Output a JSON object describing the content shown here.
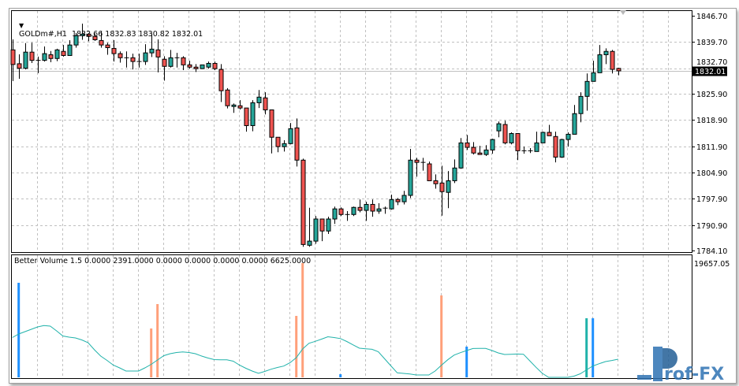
{
  "chart_header": {
    "symbol_timeframe": "GOLDm#,H1",
    "ohlc_text": "1832.66 1832.83 1830.82 1832.01"
  },
  "indicator_header": {
    "text": "Better Volume 1.5 0.0000 2391.0000 0.0000 0.0000 0.0000 0.0000 6625.0000"
  },
  "current_price_label": "1832.01",
  "watermark": "Prof-FX",
  "colors": {
    "bull": "#26a69a",
    "bear": "#ef5350",
    "volume_blue": "#1e90ff",
    "volume_orange": "#ffa07a",
    "volume_teal": "#20b2aa",
    "average_line": "#20b2aa",
    "watermark": "#2f73b3"
  },
  "chart_data": [
    {
      "type": "candlestick",
      "title": "GOLDm#,H1",
      "ylim": [
        1784.1,
        1846.7
      ],
      "y_ticks": [
        "1846.70",
        "1839.70",
        "1832.70",
        "1825.90",
        "1818.90",
        "1811.90",
        "1804.90",
        "1797.90",
        "1790.90",
        "1784.10"
      ],
      "grid": true,
      "current_price": 1832.01,
      "ohlc": [
        [
          1837.6,
          1840.4,
          1829.3,
          1833.7
        ],
        [
          1833.9,
          1836.4,
          1829.9,
          1832.7
        ],
        [
          1832.7,
          1839.4,
          1832.4,
          1837.0
        ],
        [
          1837.0,
          1839.5,
          1834.1,
          1834.8
        ],
        [
          1834.8,
          1835.8,
          1831.4,
          1834.8
        ],
        [
          1834.8,
          1838.5,
          1834.5,
          1836.6
        ],
        [
          1836.3,
          1837.3,
          1834.3,
          1835.3
        ],
        [
          1835.3,
          1837.9,
          1834.6,
          1837.6
        ],
        [
          1837.2,
          1838.9,
          1835.8,
          1836.1
        ],
        [
          1836.1,
          1840.2,
          1836.1,
          1838.9
        ],
        [
          1838.9,
          1842.1,
          1838.2,
          1841.4
        ],
        [
          1841.4,
          1844.6,
          1840.3,
          1841.8
        ],
        [
          1841.8,
          1842.1,
          1839.9,
          1841.2
        ],
        [
          1841.2,
          1841.8,
          1840.0,
          1840.3
        ],
        [
          1840.1,
          1842.5,
          1838.2,
          1838.9
        ],
        [
          1838.9,
          1839.5,
          1836.3,
          1838.2
        ],
        [
          1838.0,
          1840.2,
          1834.5,
          1836.6
        ],
        [
          1836.6,
          1837.2,
          1834.2,
          1835.5
        ],
        [
          1835.5,
          1837.2,
          1832.9,
          1835.5
        ],
        [
          1835.5,
          1836.6,
          1832.4,
          1834.5
        ],
        [
          1834.5,
          1836.6,
          1832.9,
          1834.5
        ],
        [
          1834.5,
          1839.1,
          1833.6,
          1836.8
        ],
        [
          1836.8,
          1842.0,
          1835.7,
          1837.8
        ],
        [
          1837.6,
          1840.4,
          1831.6,
          1835.7
        ],
        [
          1835.1,
          1835.9,
          1829.4,
          1833.2
        ],
        [
          1833.2,
          1837.6,
          1832.9,
          1835.5
        ],
        [
          1835.5,
          1836.8,
          1832.9,
          1835.5
        ],
        [
          1835.5,
          1835.9,
          1832.2,
          1833.6
        ],
        [
          1833.6,
          1834.7,
          1832.6,
          1833.0
        ],
        [
          1833.0,
          1833.8,
          1831.7,
          1832.6
        ],
        [
          1832.6,
          1833.6,
          1832.6,
          1833.6
        ],
        [
          1833.0,
          1834.5,
          1832.6,
          1834.0
        ],
        [
          1834.0,
          1834.5,
          1832.2,
          1832.6
        ],
        [
          1832.4,
          1833.8,
          1823.7,
          1826.7
        ],
        [
          1826.9,
          1827.4,
          1822.0,
          1822.7
        ],
        [
          1822.5,
          1823.3,
          1820.8,
          1822.9
        ],
        [
          1822.7,
          1824.2,
          1821.7,
          1822.1
        ],
        [
          1822.1,
          1822.1,
          1815.8,
          1817.4
        ],
        [
          1817.4,
          1824.2,
          1815.9,
          1823.5
        ],
        [
          1823.5,
          1826.9,
          1822.1,
          1825.0
        ],
        [
          1824.8,
          1826.3,
          1820.4,
          1821.6
        ],
        [
          1821.6,
          1821.6,
          1810.0,
          1814.3
        ],
        [
          1814.3,
          1814.3,
          1810.3,
          1811.8
        ],
        [
          1811.8,
          1813.5,
          1810.5,
          1812.6
        ],
        [
          1812.6,
          1818.1,
          1812.4,
          1816.6
        ],
        [
          1816.8,
          1819.3,
          1806.5,
          1808.2
        ],
        [
          1808.2,
          1808.6,
          1785.1,
          1785.7
        ],
        [
          1785.5,
          1795.5,
          1785.1,
          1786.6
        ],
        [
          1786.6,
          1793.3,
          1785.9,
          1792.5
        ],
        [
          1792.5,
          1792.5,
          1786.6,
          1789.3
        ],
        [
          1789.3,
          1793.1,
          1788.5,
          1792.5
        ],
        [
          1792.5,
          1795.8,
          1791.2,
          1795.2
        ],
        [
          1795.2,
          1795.6,
          1793.3,
          1793.7
        ],
        [
          1793.7,
          1794.6,
          1792.0,
          1793.7
        ],
        [
          1793.7,
          1795.8,
          1793.3,
          1795.6
        ],
        [
          1795.6,
          1797.7,
          1794.3,
          1794.8
        ],
        [
          1794.8,
          1797.1,
          1792.0,
          1796.4
        ],
        [
          1796.4,
          1797.7,
          1793.1,
          1794.6
        ],
        [
          1794.6,
          1796.7,
          1793.9,
          1795.2
        ],
        [
          1795.4,
          1795.8,
          1793.9,
          1795.4
        ],
        [
          1795.2,
          1799.0,
          1795.0,
          1797.7
        ],
        [
          1797.7,
          1798.1,
          1796.2,
          1797.1
        ],
        [
          1797.1,
          1800.0,
          1796.4,
          1798.8
        ],
        [
          1798.8,
          1811.2,
          1798.1,
          1808.2
        ],
        [
          1808.2,
          1808.8,
          1803.8,
          1807.6
        ],
        [
          1807.6,
          1808.8,
          1805.4,
          1807.6
        ],
        [
          1807.2,
          1807.8,
          1802.7,
          1802.7
        ],
        [
          1802.7,
          1804.4,
          1800.6,
          1801.9
        ],
        [
          1802.1,
          1806.7,
          1793.4,
          1799.8
        ],
        [
          1799.6,
          1805.3,
          1795.4,
          1802.7
        ],
        [
          1802.7,
          1808.4,
          1802.1,
          1806.1
        ],
        [
          1806.1,
          1814.1,
          1805.9,
          1812.8
        ],
        [
          1812.8,
          1814.9,
          1810.9,
          1811.6
        ],
        [
          1811.6,
          1813.0,
          1809.7,
          1810.1
        ],
        [
          1810.1,
          1812.0,
          1809.7,
          1809.7
        ],
        [
          1809.7,
          1812.2,
          1809.3,
          1810.9
        ],
        [
          1810.9,
          1813.9,
          1809.9,
          1813.7
        ],
        [
          1816.0,
          1818.5,
          1814.3,
          1817.9
        ],
        [
          1817.7,
          1818.7,
          1812.4,
          1812.8
        ],
        [
          1812.8,
          1815.6,
          1812.4,
          1815.3
        ],
        [
          1815.3,
          1815.3,
          1808.2,
          1810.7
        ],
        [
          1810.7,
          1811.8,
          1809.9,
          1810.7
        ],
        [
          1810.7,
          1811.4,
          1810.1,
          1810.7
        ],
        [
          1810.5,
          1815.8,
          1810.5,
          1812.8
        ],
        [
          1812.8,
          1815.8,
          1812.8,
          1815.6
        ],
        [
          1815.6,
          1817.6,
          1814.7,
          1814.7
        ],
        [
          1814.5,
          1815.8,
          1807.6,
          1809.0
        ],
        [
          1809.0,
          1813.9,
          1808.8,
          1813.7
        ],
        [
          1813.7,
          1815.6,
          1811.8,
          1815.1
        ],
        [
          1815.1,
          1822.9,
          1815.1,
          1820.6
        ],
        [
          1820.6,
          1826.3,
          1818.3,
          1825.2
        ],
        [
          1825.2,
          1831.3,
          1821.4,
          1829.2
        ],
        [
          1829.2,
          1834.7,
          1829.2,
          1831.5
        ],
        [
          1831.5,
          1838.9,
          1831.5,
          1836.3
        ],
        [
          1836.3,
          1838.0,
          1833.8,
          1837.2
        ],
        [
          1837.2,
          1837.6,
          1831.3,
          1832.4
        ],
        [
          1832.66,
          1832.83,
          1830.82,
          1832.01
        ]
      ]
    },
    {
      "type": "bar",
      "title": "Better Volume 1.5",
      "ylim": [
        0,
        19657.05
      ],
      "y_ticks": [
        "19657.05"
      ],
      "bars": [
        {
          "candle": 2,
          "value": 15420,
          "color": "blue"
        },
        {
          "candle": 23,
          "value": 7970,
          "color": "orange"
        },
        {
          "candle": 24,
          "value": 11950,
          "color": "orange"
        },
        {
          "candle": 46,
          "value": 10020,
          "color": "orange"
        },
        {
          "candle": 47,
          "value": 18630,
          "color": "orange"
        },
        {
          "candle": 53,
          "value": 510,
          "color": "blue"
        },
        {
          "candle": 69,
          "value": 13360,
          "color": "orange"
        },
        {
          "candle": 73,
          "value": 5010,
          "color": "blue"
        },
        {
          "candle": 92,
          "value": 9640,
          "color": "teal"
        },
        {
          "candle": 93,
          "value": 9640,
          "color": "blue"
        }
      ],
      "average": [
        6490,
        7070,
        7450,
        7840,
        8220,
        8440,
        8350,
        7580,
        6750,
        6550,
        6430,
        6100,
        5650,
        4500,
        3470,
        2760,
        1990,
        1540,
        1030,
        1030,
        1030,
        1540,
        2120,
        2830,
        3530,
        3860,
        4050,
        4150,
        4050,
        3860,
        3470,
        3150,
        2890,
        2870,
        2870,
        2630,
        1990,
        1480,
        1030,
        670,
        960,
        1320,
        1610,
        1840,
        2380,
        3210,
        4630,
        5550,
        5870,
        6230,
        6620,
        6490,
        6320,
        5850,
        5290,
        4750,
        4660,
        4570,
        4180,
        3020,
        1860,
        730,
        640,
        540,
        390,
        390,
        390,
        1030,
        1980,
        2870,
        3620,
        4020,
        4370,
        4700,
        4720,
        4720,
        4380,
        3980,
        3730,
        3770,
        3800,
        3770,
        2700,
        1630,
        640,
        0,
        0,
        0,
        0,
        190,
        580,
        1220,
        1850,
        2220,
        2570,
        2750,
        2960
      ]
    }
  ]
}
